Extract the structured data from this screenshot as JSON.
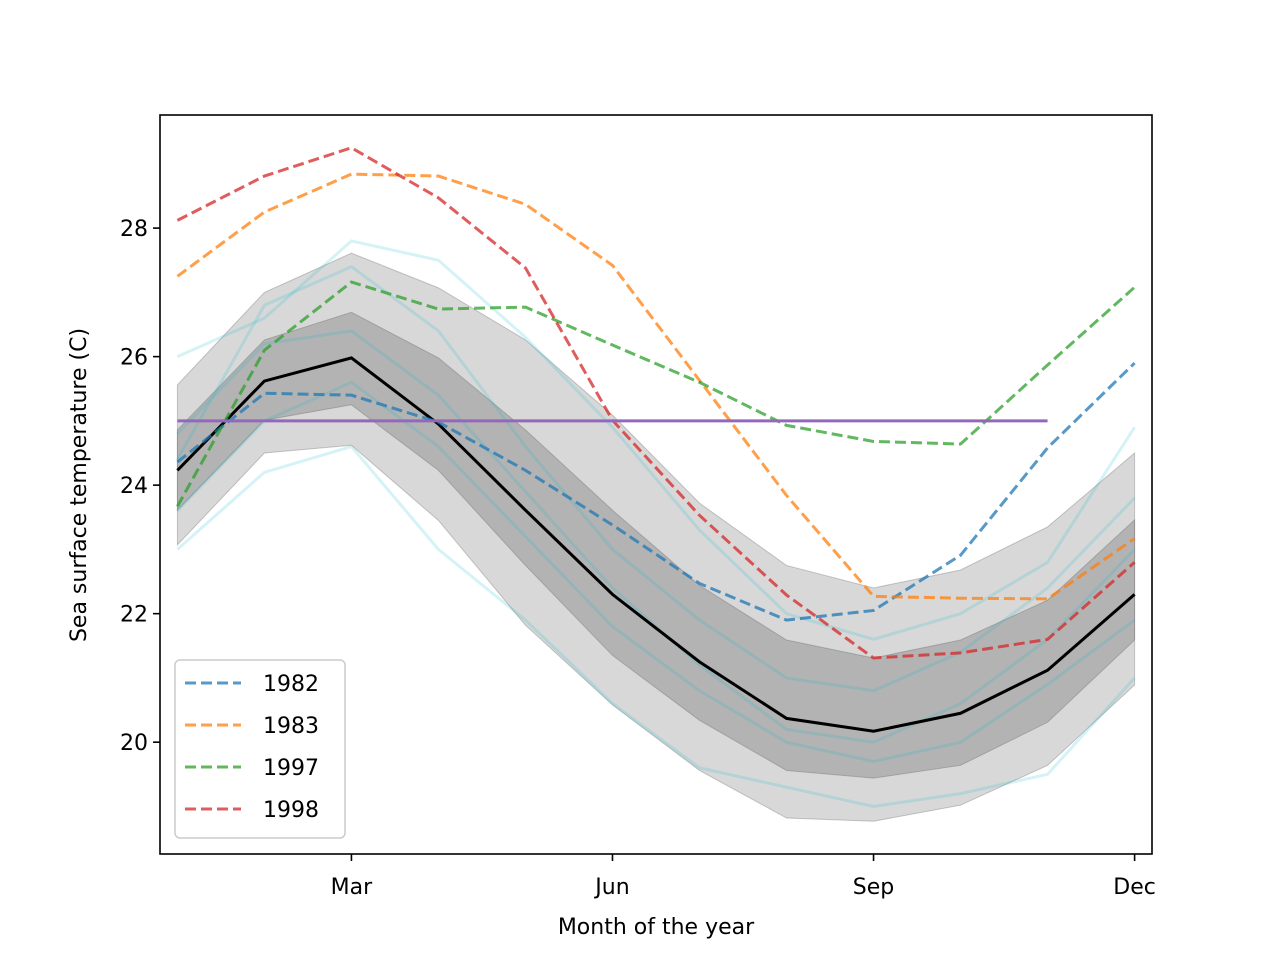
{
  "chart_data": {
    "type": "line",
    "x": [
      1,
      2,
      3,
      4,
      5,
      6,
      7,
      8,
      9,
      10,
      11,
      12
    ],
    "xlim": [
      0.8,
      12.2
    ],
    "xticks": [
      {
        "value": 3,
        "label": "Mar"
      },
      {
        "value": 6,
        "label": "Jun"
      },
      {
        "value": 9,
        "label": "Sep"
      },
      {
        "value": 12,
        "label": "Dec"
      }
    ],
    "ylim": [
      18.26,
      29.76
    ],
    "yticks": [
      20,
      22,
      24,
      26,
      28
    ],
    "xlabel": "Month of the year",
    "ylabel": "Sea surface temperature (C)",
    "legend": "lower left",
    "bands": [
      {
        "color": "#999999",
        "opacity": 0.38,
        "lower": [
          23.07,
          24.5,
          24.62,
          23.45,
          21.82,
          20.58,
          19.56,
          18.82,
          18.77,
          19.02,
          19.64,
          20.89
        ],
        "upper": [
          25.56,
          27.0,
          27.61,
          27.07,
          26.26,
          25.09,
          23.72,
          22.75,
          22.4,
          22.68,
          23.35,
          24.5
        ]
      },
      {
        "color": "#777777",
        "opacity": 0.38,
        "lower": [
          23.61,
          25.01,
          25.25,
          24.23,
          22.75,
          21.35,
          20.34,
          19.56,
          19.44,
          19.64,
          20.31,
          21.59
        ],
        "upper": [
          24.86,
          26.26,
          26.69,
          25.98,
          24.86,
          23.61,
          22.44,
          21.59,
          21.31,
          21.59,
          22.21,
          23.46
        ]
      }
    ],
    "background_color": "#17becf",
    "background_lines": [
      [
        26.0,
        26.6,
        27.8,
        27.5,
        26.3,
        24.9,
        23.3,
        22.0,
        21.6,
        22.0,
        22.8,
        24.9
      ],
      [
        23.0,
        24.2,
        24.6,
        23.0,
        21.9,
        20.6,
        19.6,
        19.3,
        19.0,
        19.2,
        19.5,
        21.0
      ],
      [
        24.8,
        26.2,
        26.4,
        25.4,
        23.9,
        22.4,
        21.2,
        20.2,
        20.0,
        20.6,
        21.6,
        23.0
      ],
      [
        23.6,
        25.0,
        25.6,
        24.6,
        23.2,
        21.8,
        20.8,
        20.0,
        19.7,
        20.0,
        20.9,
        21.9
      ],
      [
        24.4,
        26.8,
        27.4,
        26.4,
        24.6,
        23.0,
        21.9,
        21.0,
        20.8,
        21.4,
        22.4,
        23.8
      ]
    ],
    "mean": {
      "color": "#000000",
      "values": [
        24.23,
        25.62,
        25.98,
        24.95,
        23.61,
        22.3,
        21.25,
        20.37,
        20.17,
        20.45,
        21.12,
        22.3
      ]
    },
    "series": [
      {
        "name": "1982",
        "color": "#1f77b4",
        "values": [
          24.36,
          25.43,
          25.4,
          24.98,
          24.23,
          23.38,
          22.47,
          21.9,
          22.05,
          22.91,
          24.58,
          25.9
        ]
      },
      {
        "name": "1983",
        "color": "#ff7f0e",
        "values": [
          27.25,
          28.25,
          28.84,
          28.81,
          28.37,
          27.42,
          25.63,
          23.84,
          22.27,
          22.24,
          22.23,
          23.17
        ]
      },
      {
        "name": "1997",
        "color": "#2ca02c",
        "values": [
          23.67,
          26.1,
          27.16,
          26.74,
          26.77,
          26.18,
          25.6,
          24.93,
          24.68,
          24.64,
          25.87,
          27.08
        ]
      },
      {
        "name": "1998",
        "color": "#d62728",
        "values": [
          28.12,
          28.81,
          29.25,
          28.47,
          27.38,
          25.01,
          23.53,
          22.29,
          21.31,
          21.39,
          21.6,
          22.8
        ]
      }
    ],
    "reference_line": {
      "value": 25,
      "xmin": 1,
      "xmax": 11,
      "color": "#9467bd"
    }
  }
}
